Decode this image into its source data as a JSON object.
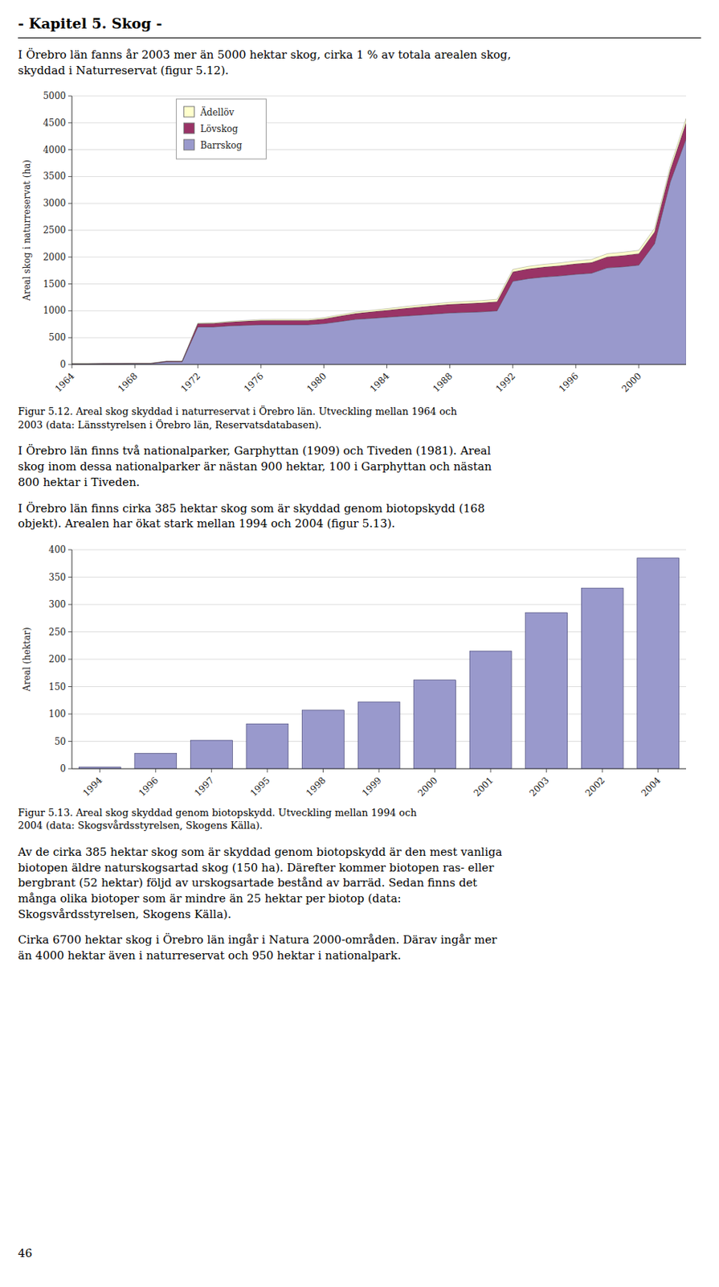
{
  "title": "- Kapitel 5. Skog -",
  "paragraphs": [
    "I Örebro län fanns år 2003 mer än 5000 hektar skog, cirka 1 % av totala arealen skog,\nskyddad i Naturreservat (figur 5.12).",
    "I Örebro län finns två nationalparker, Garphyttan (1909) och Tiveden (1981). Areal\nskog inom dessa nationalparker är nästan 900 hektar, 100 i Garphyttan och nästan\n800 hektar i Tiveden.",
    "I Örebro län finns cirka 385 hektar skog som är skyddad genom biotopskydd (168\nobjekt). Arealen har ökat stark mellan 1994 och 2004 (figur 5.13).",
    "Av de cirka 385 hektar skog som är skyddad genom biotopskydd är den mest vanliga\nbiotopen äldre naturskogsartad skog (150 ha). Därefter kommer biotopen ras- eller\nbergbrant (52 hektar) följd av urskogsartade bestånd av barräd. Sedan finns det\nmånga olika biotoper som är mindre än 25 hektar per biotop (data:\nSkogsvårdsstyrelsen, Skogens Källa).",
    "Cirka 6700 hektar skog i Örebro län ingår i Natura 2000-områden. Därav ingår mer\nän 4000 hektar även i naturreservat och 950 hektar i nationalpark."
  ],
  "page_number": "46",
  "chart_data": [
    {
      "type": "area",
      "stacked": true,
      "caption": "Figur 5.12. Areal skog skyddad i naturreservat i Örebro län. Utveckling mellan 1964 och\n2003 (data: Länsstyrelsen i Örebro län, Reservatsdatabasen).",
      "y_label": "Areal skog i naturreservat (ha)",
      "x": [
        1964,
        1965,
        1966,
        1967,
        1968,
        1969,
        1970,
        1971,
        1972,
        1973,
        1974,
        1975,
        1976,
        1977,
        1978,
        1979,
        1980,
        1981,
        1982,
        1983,
        1984,
        1985,
        1986,
        1987,
        1988,
        1989,
        1990,
        1991,
        1992,
        1993,
        1994,
        1995,
        1996,
        1997,
        1998,
        1999,
        2000,
        2001,
        2002,
        2003
      ],
      "series": [
        {
          "name": "Barrskog",
          "color": "#9999cc",
          "values": [
            10,
            10,
            12,
            12,
            15,
            15,
            50,
            50,
            700,
            700,
            720,
            730,
            740,
            740,
            740,
            740,
            760,
            800,
            840,
            860,
            880,
            900,
            920,
            940,
            960,
            970,
            980,
            1000,
            1550,
            1600,
            1630,
            1650,
            1680,
            1700,
            1800,
            1820,
            1850,
            2250,
            3400,
            4200
          ]
        },
        {
          "name": "Lövskog",
          "color": "#993366",
          "values": [
            5,
            5,
            5,
            6,
            6,
            7,
            8,
            9,
            60,
            65,
            70,
            75,
            80,
            80,
            80,
            80,
            90,
            100,
            110,
            120,
            130,
            140,
            150,
            155,
            160,
            165,
            168,
            170,
            175,
            180,
            185,
            190,
            195,
            200,
            205,
            210,
            215,
            220,
            225,
            300
          ]
        },
        {
          "name": "Ädellöv",
          "color": "#ffffcc",
          "values": [
            1,
            1,
            1,
            1,
            2,
            2,
            2,
            3,
            10,
            12,
            14,
            16,
            18,
            20,
            20,
            20,
            22,
            24,
            26,
            28,
            30,
            32,
            34,
            36,
            38,
            40,
            42,
            44,
            46,
            48,
            50,
            52,
            54,
            56,
            58,
            60,
            62,
            65,
            70,
            80
          ]
        }
      ],
      "xlim": [
        1964,
        2003
      ],
      "xticks": [
        1964,
        1968,
        1972,
        1976,
        1980,
        1984,
        1988,
        1992,
        1996,
        2000
      ],
      "ylim": [
        0,
        5000
      ],
      "yticks": [
        0,
        500,
        1000,
        1500,
        2000,
        2500,
        3000,
        3500,
        4000,
        4500,
        5000
      ],
      "grid": true,
      "legend": "upper left"
    },
    {
      "type": "bar",
      "caption": "Figur 5.13. Areal skog skyddad genom biotopskydd. Utveckling mellan 1994 och\n2004 (data: Skogsvårdsstyrelsen, Skogens Källa).",
      "y_label": "Areal (hektar)",
      "categories": [
        "1994",
        "1996",
        "1997",
        "1995",
        "1998",
        "1999",
        "2000",
        "2001",
        "2003",
        "2002",
        "2004"
      ],
      "values": [
        3,
        28,
        52,
        82,
        107,
        122,
        162,
        215,
        285,
        330,
        385
      ],
      "color": "#9999cc",
      "ylim": [
        0,
        400
      ],
      "yticks": [
        0,
        50,
        100,
        150,
        200,
        250,
        300,
        350,
        400
      ],
      "grid": true
    }
  ]
}
